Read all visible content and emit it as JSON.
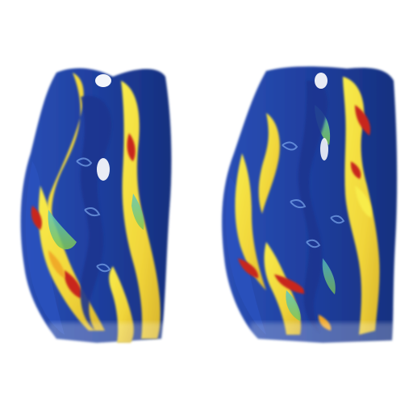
{
  "figure": {
    "panels": [
      {
        "id": "left"
      },
      {
        "id": "right"
      }
    ],
    "colormap": [
      "#1f3d9c",
      "#2f6fc8",
      "#39b6d6",
      "#7cc94a",
      "#f4e13a",
      "#f0a628",
      "#c8261a"
    ]
  }
}
